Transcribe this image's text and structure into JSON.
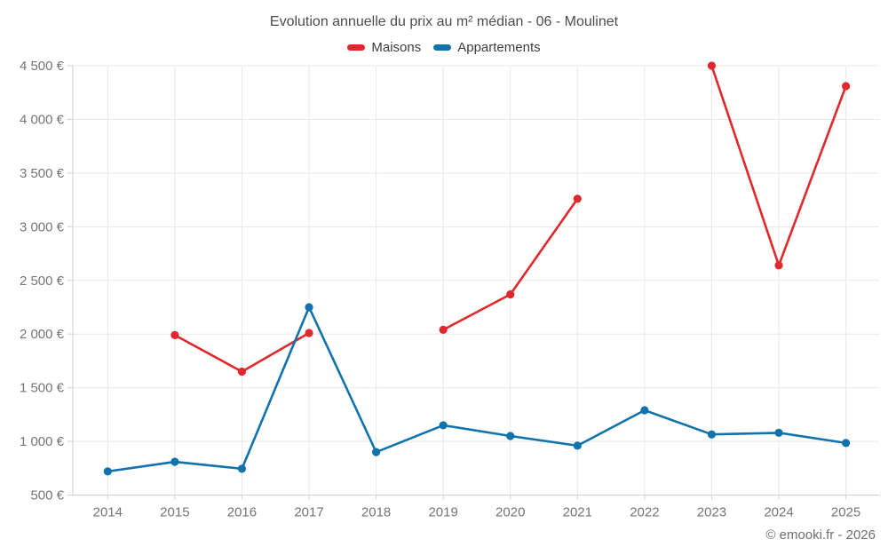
{
  "chart_data": {
    "type": "line",
    "title": "Evolution annuelle du prix au m² médian - 06 - Moulinet",
    "x": [
      2014,
      2015,
      2016,
      2017,
      2018,
      2019,
      2020,
      2021,
      2022,
      2023,
      2024,
      2025
    ],
    "series": [
      {
        "name": "Maisons",
        "color": "#e0282d",
        "values": [
          null,
          1990,
          1650,
          2010,
          null,
          2040,
          2370,
          3260,
          null,
          4500,
          2640,
          4310
        ]
      },
      {
        "name": "Appartements",
        "color": "#1272ab",
        "values": [
          720,
          810,
          745,
          2250,
          900,
          1150,
          1050,
          960,
          1290,
          1065,
          1080,
          985
        ]
      }
    ],
    "ylim": [
      500,
      4500
    ],
    "ytick_step": 500,
    "ytick_labels": [
      "500 €",
      "1 000 €",
      "1 500 €",
      "2 000 €",
      "2 500 €",
      "3 000 €",
      "3 500 €",
      "4 000 €",
      "4 500 €"
    ],
    "xtick_labels": [
      "2014",
      "2015",
      "2016",
      "2017",
      "2018",
      "2019",
      "2020",
      "2021",
      "2022",
      "2023",
      "2024",
      "2025"
    ],
    "grid": true,
    "legend_position": "top",
    "colors": {
      "gridline": "#e8e8e8",
      "axis": "#cfcfcf",
      "tick_label": "#757575"
    }
  },
  "footer": {
    "copyright": "© emooki.fr - 2026"
  }
}
